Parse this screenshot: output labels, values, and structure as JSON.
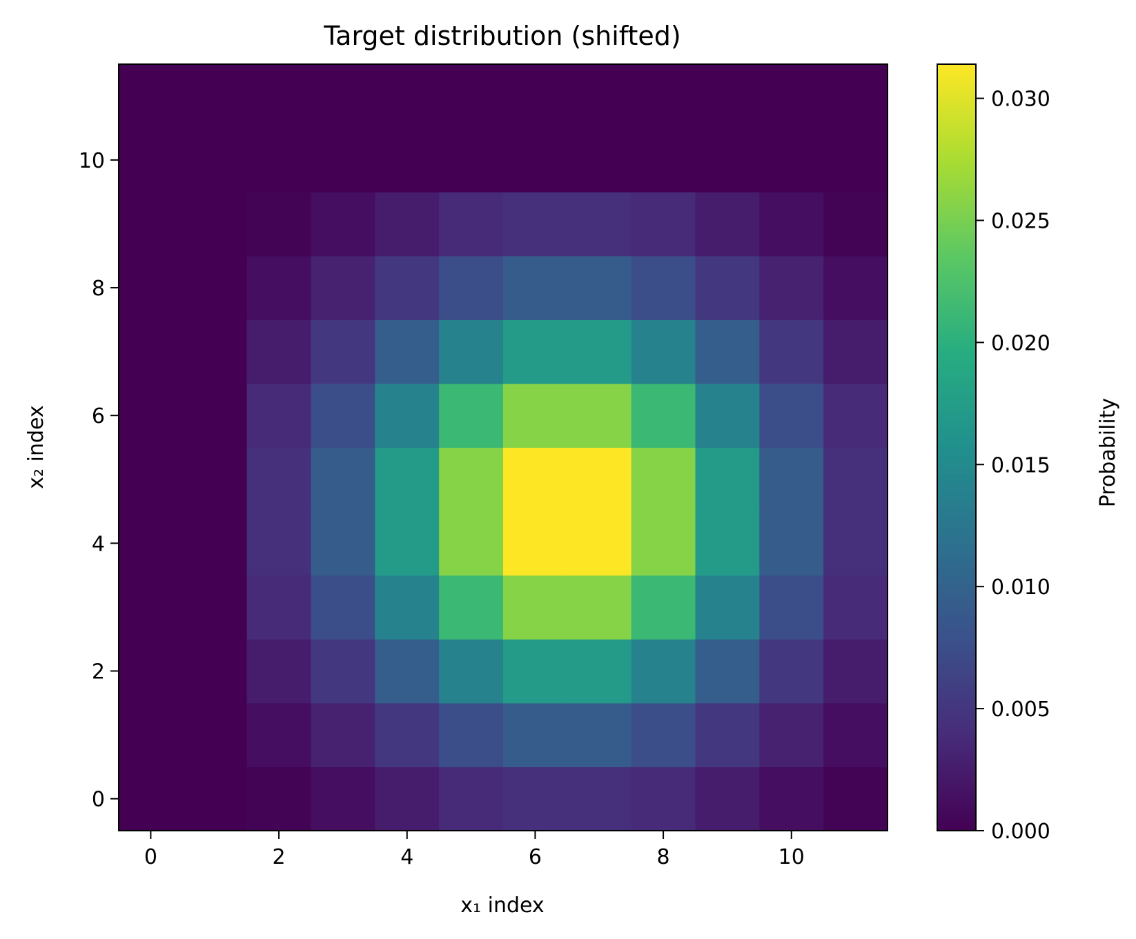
{
  "chart_data": {
    "type": "heatmap",
    "title": "Target distribution (shifted)",
    "xlabel": "x₁ index",
    "ylabel": "x₂ index",
    "colorbar_label": "Probability",
    "colormap": "viridis",
    "x_ticks": [
      "0",
      "2",
      "4",
      "6",
      "8",
      "10"
    ],
    "y_ticks": [
      "0",
      "2",
      "4",
      "6",
      "8",
      "10"
    ],
    "colorbar_ticks": [
      "0.000",
      "0.005",
      "0.010",
      "0.015",
      "0.020",
      "0.025",
      "0.030"
    ],
    "colorbar_tick_values": [
      0.0,
      0.005,
      0.01,
      0.015,
      0.02,
      0.025,
      0.03
    ],
    "x_range": [
      -0.5,
      11.5
    ],
    "y_range": [
      -0.5,
      11.5
    ],
    "vmin": 0.0,
    "vmax": 0.0314,
    "rows_note": "values[row][col]; row index = x2 index (0 at bottom), col index = x1 index",
    "values": [
      [
        0.0,
        0.0,
        0.00025,
        0.0012,
        0.0026,
        0.0038,
        0.0043,
        0.0043,
        0.0038,
        0.0026,
        0.0012,
        0.00025
      ],
      [
        0.0,
        0.0,
        0.0012,
        0.003,
        0.0052,
        0.0075,
        0.0092,
        0.0092,
        0.0075,
        0.0052,
        0.003,
        0.0012
      ],
      [
        0.0,
        0.0,
        0.0026,
        0.0052,
        0.0095,
        0.014,
        0.0172,
        0.0172,
        0.014,
        0.0095,
        0.0052,
        0.0026
      ],
      [
        0.0,
        0.0,
        0.0038,
        0.0075,
        0.014,
        0.0212,
        0.0257,
        0.0257,
        0.0212,
        0.014,
        0.0075,
        0.0038
      ],
      [
        0.0,
        0.0,
        0.0043,
        0.0092,
        0.0172,
        0.0257,
        0.0314,
        0.0314,
        0.0257,
        0.0172,
        0.0092,
        0.0043
      ],
      [
        0.0,
        0.0,
        0.0043,
        0.0092,
        0.0172,
        0.0257,
        0.0314,
        0.0314,
        0.0257,
        0.0172,
        0.0092,
        0.0043
      ],
      [
        0.0,
        0.0,
        0.0038,
        0.0075,
        0.014,
        0.0212,
        0.0257,
        0.0257,
        0.0212,
        0.014,
        0.0075,
        0.0038
      ],
      [
        0.0,
        0.0,
        0.0026,
        0.0052,
        0.0095,
        0.014,
        0.0172,
        0.0172,
        0.014,
        0.0095,
        0.0052,
        0.0026
      ],
      [
        0.0,
        0.0,
        0.0012,
        0.003,
        0.0052,
        0.0075,
        0.0092,
        0.0092,
        0.0075,
        0.0052,
        0.003,
        0.0012
      ],
      [
        0.0,
        0.0,
        0.00025,
        0.0012,
        0.0026,
        0.0038,
        0.0043,
        0.0043,
        0.0038,
        0.0026,
        0.0012,
        0.00025
      ],
      [
        0.0,
        0.0,
        0.0,
        0.0,
        0.0,
        0.0,
        0.0,
        0.0,
        0.0,
        0.0,
        0.0,
        0.0
      ],
      [
        0.0,
        0.0,
        0.0,
        0.0,
        0.0,
        0.0,
        0.0,
        0.0,
        0.0,
        0.0,
        0.0,
        0.0
      ]
    ]
  }
}
